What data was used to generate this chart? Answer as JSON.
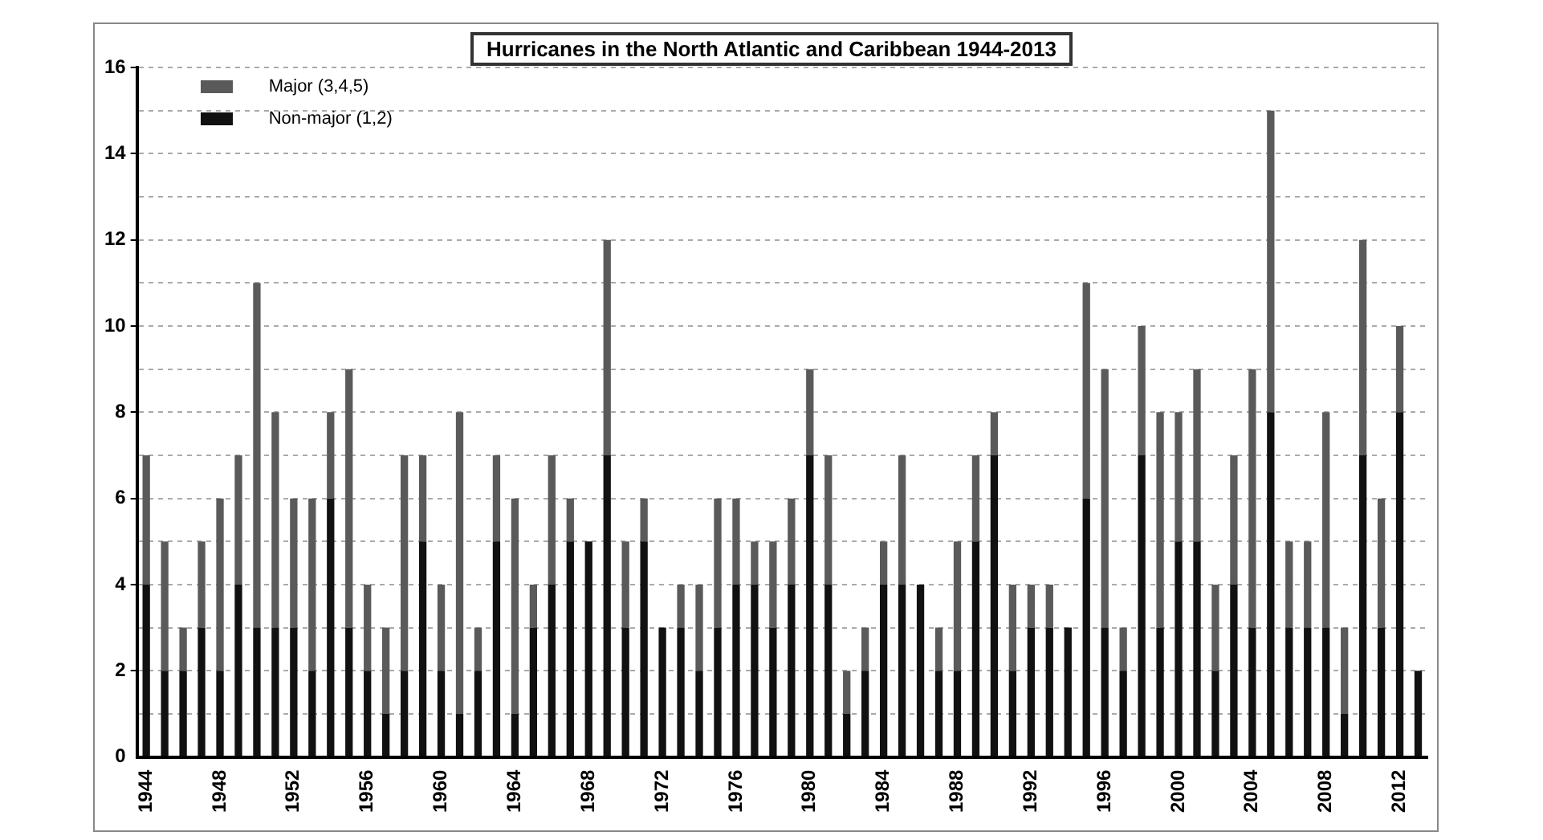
{
  "chart_data": {
    "type": "bar",
    "title": "Hurricanes in the North Atlantic and Caribbean 1944-2013",
    "stacked": true,
    "categories": [
      "1944",
      null,
      null,
      null,
      "1948",
      null,
      null,
      null,
      "1952",
      null,
      null,
      null,
      "1956",
      null,
      null,
      null,
      "1960",
      null,
      null,
      null,
      "1964",
      null,
      null,
      null,
      "1968",
      null,
      null,
      null,
      "1972",
      null,
      null,
      null,
      "1976",
      null,
      null,
      null,
      "1980",
      null,
      null,
      null,
      "1984",
      null,
      null,
      null,
      "1988",
      null,
      null,
      null,
      "1992",
      null,
      null,
      null,
      "1996",
      null,
      null,
      null,
      "2000",
      null,
      null,
      null,
      "2004",
      null,
      null,
      null,
      "2008",
      null,
      null,
      null,
      "2012",
      null
    ],
    "series": [
      {
        "name": "Non-major (1,2)",
        "color": "#111111",
        "values": [
          4,
          2,
          2,
          3,
          2,
          4,
          3,
          3,
          3,
          2,
          6,
          3,
          2,
          1,
          2,
          5,
          2,
          1,
          2,
          5,
          1,
          3,
          4,
          5,
          5,
          7,
          3,
          5,
          3,
          3,
          2,
          3,
          4,
          4,
          3,
          4,
          7,
          4,
          1,
          2,
          4,
          4,
          4,
          2,
          2,
          5,
          7,
          2,
          3,
          3,
          3,
          6,
          3,
          2,
          7,
          3,
          5,
          5,
          2,
          4,
          3,
          8,
          3,
          3,
          3,
          1,
          7,
          3,
          8,
          2
        ]
      },
      {
        "name": "Major (3,4,5)",
        "color": "#5a5a5a",
        "values": [
          3,
          3,
          1,
          2,
          4,
          3,
          8,
          5,
          3,
          4,
          2,
          6,
          2,
          2,
          5,
          2,
          2,
          7,
          1,
          2,
          5,
          1,
          3,
          1,
          0,
          5,
          2,
          1,
          0,
          1,
          2,
          3,
          2,
          1,
          2,
          2,
          2,
          3,
          1,
          1,
          1,
          3,
          0,
          1,
          3,
          2,
          1,
          2,
          1,
          1,
          0,
          5,
          6,
          1,
          3,
          5,
          3,
          4,
          2,
          3,
          6,
          7,
          2,
          2,
          5,
          2,
          5,
          3,
          2,
          0
        ]
      }
    ],
    "ylim": [
      0,
      16
    ],
    "yticks": [
      0,
      {
        "value": 1,
        "label": null
      },
      2,
      {
        "value": 3,
        "label": null
      },
      4,
      {
        "value": 5,
        "label": null
      },
      6,
      {
        "value": 7,
        "label": null
      },
      8,
      {
        "value": 9,
        "label": null
      },
      10,
      {
        "value": 11,
        "label": null
      },
      12,
      {
        "value": 13,
        "label": null
      },
      14,
      {
        "value": 15,
        "label": null
      },
      16
    ],
    "grid": "y",
    "legend": "top left"
  }
}
